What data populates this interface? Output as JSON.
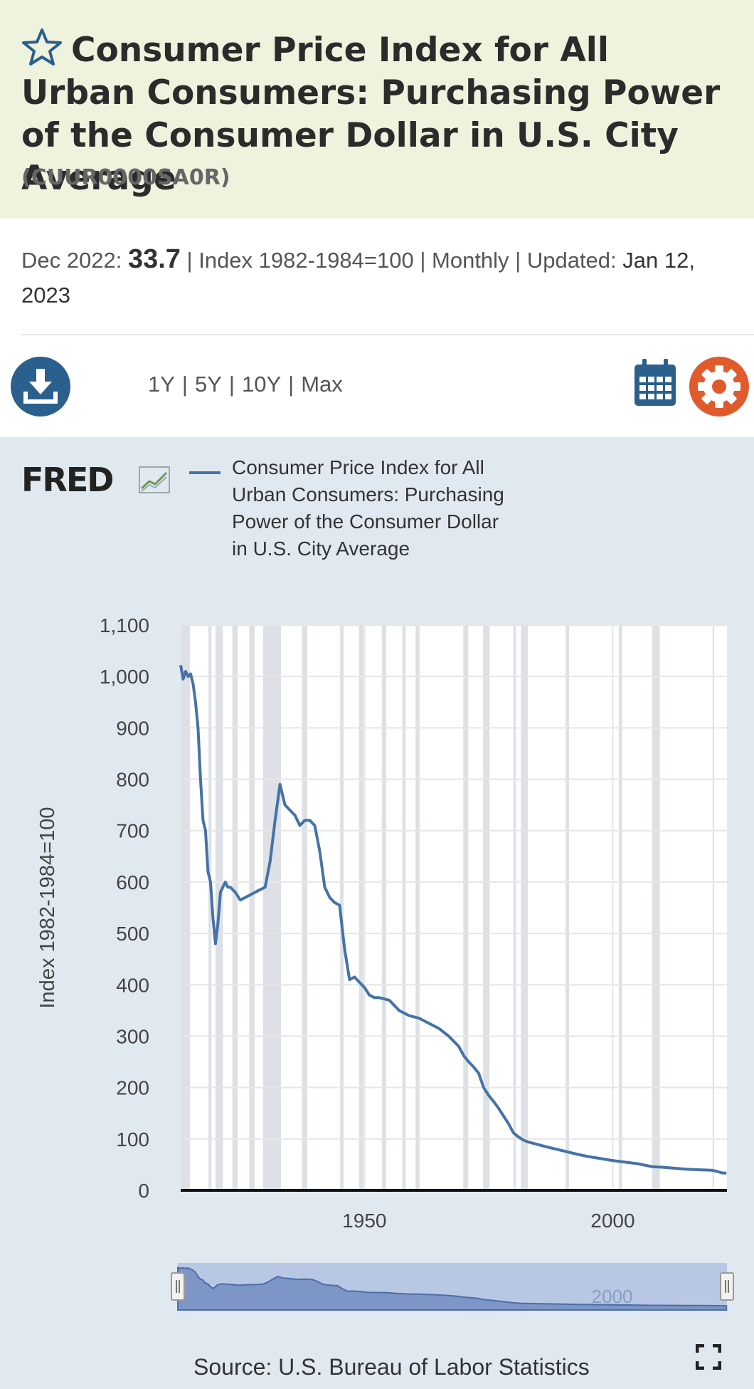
{
  "header": {
    "title": "Consumer Price Index for All Urban Consumers: Purchasing Power of the Consumer Dollar in U.S. City Average",
    "series_id": "(CUUR0000SA0R)"
  },
  "meta": {
    "period_label": "Dec 2022:",
    "value": "33.7",
    "units": "| Index 1982-1984=100 | Monthly | Updated:",
    "updated": "Jan 12, 2023"
  },
  "toolbar": {
    "ranges": [
      "1Y",
      "5Y",
      "10Y",
      "Max"
    ],
    "download_icon": "download-icon",
    "calendar_icon": "calendar-icon",
    "settings_icon": "gear-icon",
    "accent_color": "#2b5f8e",
    "settings_color": "#e05a2b"
  },
  "chart": {
    "logo_text": "FRED",
    "legend": "Consumer Price Index for All Urban Consumers: Purchasing Power of the Consumer Dollar in U.S. City Average",
    "source": "Source: U.S. Bureau of Labor Statistics",
    "navigator_label": "2000",
    "line_color": "#4572a7",
    "recession_color": "#dde1e5"
  },
  "chart_data": {
    "type": "line",
    "title": "",
    "xlabel": "",
    "ylabel": "Index 1982-1984=100",
    "xlim": [
      1913,
      2023
    ],
    "ylim": [
      0,
      1100
    ],
    "yticks": [
      0,
      100,
      200,
      300,
      400,
      500,
      600,
      700,
      800,
      900,
      1000,
      1100
    ],
    "ytick_labels": [
      "0",
      "100",
      "200",
      "300",
      "400",
      "500",
      "600",
      "700",
      "800",
      "900",
      "1,000",
      "1,100"
    ],
    "xticks": [
      1950,
      2000
    ],
    "xtick_labels": [
      "1950",
      "2000"
    ],
    "grid": true,
    "recessions": [
      [
        1913.0,
        1914.9
      ],
      [
        1918.6,
        1919.2
      ],
      [
        1920.0,
        1921.5
      ],
      [
        1923.4,
        1924.5
      ],
      [
        1926.8,
        1927.9
      ],
      [
        1929.6,
        1933.2
      ],
      [
        1937.4,
        1938.5
      ],
      [
        1945.1,
        1945.8
      ],
      [
        1948.9,
        1949.8
      ],
      [
        1953.5,
        1954.4
      ],
      [
        1957.6,
        1958.3
      ],
      [
        1960.3,
        1961.1
      ],
      [
        1969.9,
        1970.9
      ],
      [
        1973.9,
        1975.2
      ],
      [
        1980.0,
        1980.5
      ],
      [
        1981.5,
        1982.9
      ],
      [
        1990.5,
        1991.2
      ],
      [
        2001.2,
        2001.9
      ],
      [
        2007.9,
        2009.5
      ],
      [
        2020.1,
        2020.4
      ]
    ],
    "series": [
      {
        "name": "Consumer Price Index for All Urban Consumers: Purchasing Power of the Consumer Dollar in U.S. City Average",
        "x": [
          1913.0,
          1913.5,
          1914.0,
          1914.5,
          1915.0,
          1915.5,
          1916.0,
          1916.5,
          1917.0,
          1917.5,
          1918.0,
          1918.5,
          1919.0,
          1919.5,
          1920.0,
          1920.5,
          1921.0,
          1921.5,
          1922.0,
          1922.5,
          1923.0,
          1924.0,
          1925.0,
          1926.0,
          1927.0,
          1928.0,
          1929.0,
          1930.0,
          1931.0,
          1932.0,
          1933.0,
          1933.5,
          1934.0,
          1935.0,
          1936.0,
          1937.0,
          1938.0,
          1939.0,
          1940.0,
          1941.0,
          1942.0,
          1943.0,
          1944.0,
          1945.0,
          1946.0,
          1946.5,
          1947.0,
          1948.0,
          1949.0,
          1950.0,
          1951.0,
          1952.0,
          1953.0,
          1955.0,
          1957.0,
          1959.0,
          1961.0,
          1963.0,
          1965.0,
          1967.0,
          1969.0,
          1970.0,
          1971.0,
          1972.0,
          1973.0,
          1974.0,
          1975.0,
          1976.0,
          1977.0,
          1978.0,
          1979.0,
          1980.0,
          1981.0,
          1982.0,
          1983.0,
          1985.0,
          1987.0,
          1990.0,
          1993.0,
          1995.0,
          2000.0,
          2005.0,
          2008.0,
          2010.0,
          2015.0,
          2020.0,
          2021.0,
          2022.0,
          2022.9
        ],
        "values": [
          1022,
          995,
          1010,
          1000,
          1005,
          985,
          950,
          900,
          800,
          720,
          700,
          620,
          600,
          530,
          480,
          520,
          580,
          590,
          600,
          590,
          590,
          580,
          565,
          570,
          575,
          580,
          585,
          590,
          640,
          720,
          790,
          770,
          750,
          740,
          730,
          710,
          720,
          720,
          710,
          660,
          590,
          570,
          560,
          555,
          470,
          440,
          410,
          415,
          405,
          395,
          380,
          375,
          375,
          370,
          350,
          340,
          335,
          325,
          315,
          300,
          280,
          262,
          250,
          240,
          228,
          200,
          185,
          173,
          160,
          145,
          130,
          112,
          104,
          98,
          94,
          89,
          84,
          77,
          70,
          66,
          58,
          52,
          46,
          45,
          41,
          39,
          37,
          34,
          33.7
        ]
      }
    ]
  }
}
